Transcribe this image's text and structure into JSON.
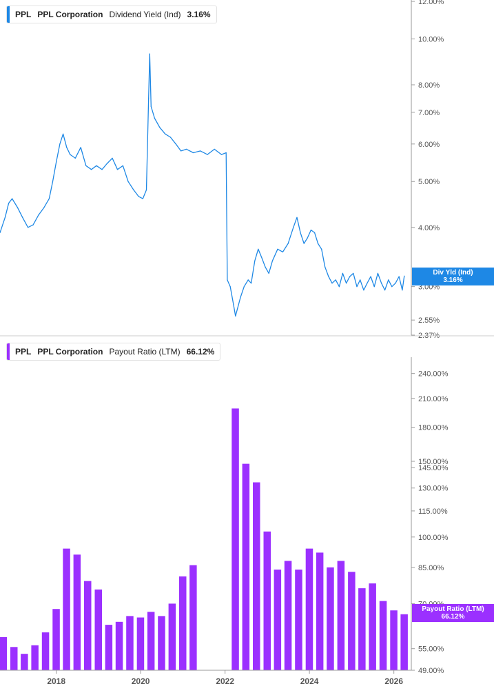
{
  "panels": {
    "top": {
      "legend": {
        "symbol": "PPL",
        "company": "PPL Corporation",
        "metric": "Dividend Yield (Ind)",
        "value": "3.16%"
      },
      "tag": {
        "label": "Div Yld (Ind)",
        "value": "3.16%"
      }
    },
    "bottom": {
      "legend": {
        "symbol": "PPL",
        "company": "PPL Corporation",
        "metric": "Payout Ratio (LTM)",
        "value": "66.12%"
      },
      "tag": {
        "label": "Payout Ratio (LTM)",
        "value": "66.12%"
      }
    }
  },
  "colors": {
    "line": "#1e88e5",
    "bar": "#9b30ff",
    "grid": "#d9d9d9",
    "axis_text": "#555555",
    "tag_blue": "#1e88e5",
    "tag_purple": "#9b30ff"
  },
  "chart_data": [
    {
      "type": "line",
      "scale": "log",
      "ylim": [
        2.37,
        12.0
      ],
      "y_tick_labels": [
        "12.00%",
        "10.00%",
        "8.00%",
        "7.00%",
        "6.00%",
        "5.00%",
        "4.00%",
        "3.00%",
        "2.55%",
        "2.37%"
      ],
      "y_tick_values": [
        12.0,
        10.0,
        8.0,
        7.0,
        6.0,
        5.0,
        4.0,
        3.0,
        2.55,
        2.37
      ],
      "series": [
        {
          "points": [
            [
              "2016-09-01",
              3.9
            ],
            [
              "2016-10-15",
              4.2
            ],
            [
              "2016-11-15",
              4.5
            ],
            [
              "2016-12-15",
              4.6
            ],
            [
              "2017-02-01",
              4.4
            ],
            [
              "2017-03-15",
              4.2
            ],
            [
              "2017-05-01",
              4.0
            ],
            [
              "2017-06-15",
              4.05
            ],
            [
              "2017-08-01",
              4.25
            ],
            [
              "2017-09-15",
              4.4
            ],
            [
              "2017-11-01",
              4.6
            ],
            [
              "2017-12-01",
              5.0
            ],
            [
              "2018-01-01",
              5.5
            ],
            [
              "2018-02-01",
              6.0
            ],
            [
              "2018-03-01",
              6.3
            ],
            [
              "2018-04-01",
              5.9
            ],
            [
              "2018-05-01",
              5.7
            ],
            [
              "2018-06-15",
              5.6
            ],
            [
              "2018-08-01",
              5.9
            ],
            [
              "2018-09-15",
              5.4
            ],
            [
              "2018-11-01",
              5.3
            ],
            [
              "2018-12-15",
              5.4
            ],
            [
              "2019-02-01",
              5.3
            ],
            [
              "2019-03-15",
              5.45
            ],
            [
              "2019-05-01",
              5.6
            ],
            [
              "2019-06-15",
              5.3
            ],
            [
              "2019-08-01",
              5.4
            ],
            [
              "2019-09-15",
              5.0
            ],
            [
              "2019-11-01",
              4.8
            ],
            [
              "2019-12-15",
              4.65
            ],
            [
              "2020-01-20",
              4.6
            ],
            [
              "2020-02-20",
              4.8
            ],
            [
              "2020-03-10",
              7.5
            ],
            [
              "2020-03-20",
              9.3
            ],
            [
              "2020-04-01",
              7.2
            ],
            [
              "2020-05-01",
              6.8
            ],
            [
              "2020-06-15",
              6.5
            ],
            [
              "2020-08-01",
              6.3
            ],
            [
              "2020-09-15",
              6.2
            ],
            [
              "2020-11-01",
              6.0
            ],
            [
              "2020-12-15",
              5.8
            ],
            [
              "2021-02-01",
              5.85
            ],
            [
              "2021-04-01",
              5.75
            ],
            [
              "2021-06-01",
              5.8
            ],
            [
              "2021-08-01",
              5.7
            ],
            [
              "2021-10-01",
              5.85
            ],
            [
              "2021-12-01",
              5.7
            ],
            [
              "2022-01-10",
              5.75
            ],
            [
              "2022-01-20",
              3.1
            ],
            [
              "2022-02-15",
              3.0
            ],
            [
              "2022-03-15",
              2.75
            ],
            [
              "2022-04-01",
              2.6
            ],
            [
              "2022-05-15",
              2.85
            ],
            [
              "2022-06-15",
              3.0
            ],
            [
              "2022-07-20",
              3.1
            ],
            [
              "2022-08-15",
              3.05
            ],
            [
              "2022-09-15",
              3.4
            ],
            [
              "2022-10-15",
              3.6
            ],
            [
              "2022-11-15",
              3.45
            ],
            [
              "2022-12-15",
              3.3
            ],
            [
              "2023-01-15",
              3.2
            ],
            [
              "2023-02-15",
              3.4
            ],
            [
              "2023-04-01",
              3.6
            ],
            [
              "2023-05-15",
              3.55
            ],
            [
              "2023-07-01",
              3.7
            ],
            [
              "2023-08-15",
              4.0
            ],
            [
              "2023-09-15",
              4.2
            ],
            [
              "2023-10-15",
              3.9
            ],
            [
              "2023-11-15",
              3.7
            ],
            [
              "2023-12-15",
              3.8
            ],
            [
              "2024-01-15",
              3.95
            ],
            [
              "2024-02-15",
              3.9
            ],
            [
              "2024-03-15",
              3.7
            ],
            [
              "2024-04-15",
              3.6
            ],
            [
              "2024-05-15",
              3.3
            ],
            [
              "2024-06-15",
              3.15
            ],
            [
              "2024-07-15",
              3.05
            ],
            [
              "2024-08-15",
              3.1
            ],
            [
              "2024-09-15",
              3.0
            ],
            [
              "2024-10-15",
              3.2
            ],
            [
              "2024-11-15",
              3.05
            ],
            [
              "2024-12-15",
              3.15
            ],
            [
              "2025-01-15",
              3.2
            ],
            [
              "2025-02-15",
              3.0
            ],
            [
              "2025-03-15",
              3.1
            ],
            [
              "2025-04-15",
              2.95
            ],
            [
              "2025-05-15",
              3.05
            ],
            [
              "2025-06-15",
              3.15
            ],
            [
              "2025-07-15",
              3.0
            ],
            [
              "2025-08-15",
              3.2
            ],
            [
              "2025-09-15",
              3.05
            ],
            [
              "2025-10-15",
              2.95
            ],
            [
              "2025-11-15",
              3.1
            ],
            [
              "2025-12-15",
              3.0
            ],
            [
              "2026-01-15",
              3.05
            ],
            [
              "2026-02-15",
              3.15
            ],
            [
              "2026-03-15",
              2.95
            ],
            [
              "2026-04-01",
              3.16
            ]
          ]
        }
      ]
    },
    {
      "type": "bar",
      "scale": "log",
      "ylim": [
        49.0,
        260.0
      ],
      "y_tick_labels": [
        "240.00%",
        "210.00%",
        "180.00%",
        "150.00%",
        "145.00%",
        "130.00%",
        "115.00%",
        "100.00%",
        "85.00%",
        "70.00%",
        "55.00%",
        "49.00%"
      ],
      "y_tick_values": [
        240,
        210,
        180,
        150,
        145,
        130,
        115,
        100,
        85,
        70,
        55,
        49
      ],
      "series": [
        {
          "points": [
            [
              "2016-09-30",
              58.5
            ],
            [
              "2016-12-31",
              55.5
            ],
            [
              "2017-03-31",
              53.5
            ],
            [
              "2017-06-30",
              56.0
            ],
            [
              "2017-09-30",
              60.0
            ],
            [
              "2017-12-31",
              68.0
            ],
            [
              "2018-03-31",
              94.0
            ],
            [
              "2018-06-30",
              91.0
            ],
            [
              "2018-09-30",
              79.0
            ],
            [
              "2018-12-31",
              75.5
            ],
            [
              "2019-03-31",
              62.5
            ],
            [
              "2019-06-30",
              63.5
            ],
            [
              "2019-09-30",
              65.5
            ],
            [
              "2019-12-31",
              65.0
            ],
            [
              "2020-03-31",
              67.0
            ],
            [
              "2020-06-30",
              65.5
            ],
            [
              "2020-09-30",
              70.0
            ],
            [
              "2020-12-31",
              81.0
            ],
            [
              "2021-03-31",
              86.0
            ],
            [
              "2022-03-31",
              199.0
            ],
            [
              "2022-06-30",
              148.0
            ],
            [
              "2022-09-30",
              134.0
            ],
            [
              "2022-12-31",
              103.0
            ],
            [
              "2023-03-31",
              84.0
            ],
            [
              "2023-06-30",
              88.0
            ],
            [
              "2023-09-30",
              84.0
            ],
            [
              "2023-12-31",
              94.0
            ],
            [
              "2024-03-31",
              92.0
            ],
            [
              "2024-06-30",
              85.0
            ],
            [
              "2024-09-30",
              88.0
            ],
            [
              "2024-12-31",
              83.0
            ],
            [
              "2025-03-31",
              76.0
            ],
            [
              "2025-06-30",
              78.0
            ],
            [
              "2025-09-30",
              71.0
            ],
            [
              "2025-12-31",
              67.5
            ],
            [
              "2026-03-31",
              66.12
            ]
          ]
        }
      ]
    }
  ],
  "x_axis": {
    "range": [
      "2016-09-01",
      "2026-06-01"
    ],
    "ticks": [
      {
        "label": "2018",
        "date": "2018-01-01"
      },
      {
        "label": "2020",
        "date": "2020-01-01"
      },
      {
        "label": "2022",
        "date": "2022-01-01"
      },
      {
        "label": "2024",
        "date": "2024-01-01"
      },
      {
        "label": "2026",
        "date": "2026-01-01"
      }
    ]
  }
}
